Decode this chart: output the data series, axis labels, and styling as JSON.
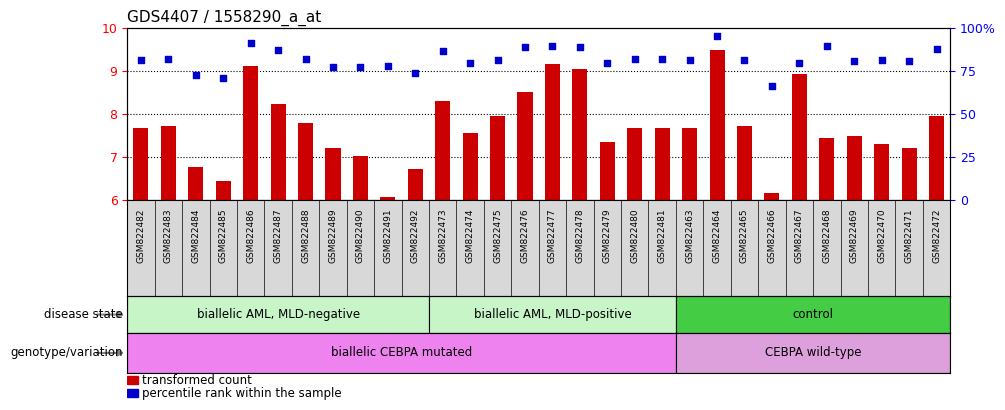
{
  "title": "GDS4407 / 1558290_a_at",
  "samples": [
    "GSM822482",
    "GSM822483",
    "GSM822484",
    "GSM822485",
    "GSM822486",
    "GSM822487",
    "GSM822488",
    "GSM822489",
    "GSM822490",
    "GSM822491",
    "GSM822492",
    "GSM822473",
    "GSM822474",
    "GSM822475",
    "GSM822476",
    "GSM822477",
    "GSM822478",
    "GSM822479",
    "GSM822480",
    "GSM822481",
    "GSM822463",
    "GSM822464",
    "GSM822465",
    "GSM822466",
    "GSM822467",
    "GSM822468",
    "GSM822469",
    "GSM822470",
    "GSM822471",
    "GSM822472"
  ],
  "bar_values": [
    7.67,
    7.72,
    6.78,
    6.45,
    9.1,
    8.22,
    7.78,
    7.2,
    7.02,
    6.07,
    6.72,
    8.3,
    7.55,
    7.95,
    8.5,
    9.15,
    9.05,
    7.35,
    7.68,
    7.68,
    7.68,
    9.48,
    7.72,
    6.18,
    8.92,
    7.45,
    7.5,
    7.3,
    7.22,
    7.95
  ],
  "dot_values": [
    9.25,
    9.28,
    8.9,
    8.82,
    9.65,
    9.48,
    9.28,
    9.08,
    9.08,
    9.12,
    8.95,
    9.45,
    9.18,
    9.25,
    9.55,
    9.58,
    9.55,
    9.18,
    9.28,
    9.28,
    9.25,
    9.8,
    9.25,
    8.65,
    9.18,
    9.58,
    9.22,
    9.25,
    9.22,
    9.5
  ],
  "ylim_left": [
    6,
    10
  ],
  "ylim_right": [
    0,
    100
  ],
  "yticks_left": [
    6,
    7,
    8,
    9,
    10
  ],
  "yticks_right": [
    0,
    25,
    50,
    75,
    100
  ],
  "ytick_labels_right": [
    "0",
    "25",
    "50",
    "75",
    "100%"
  ],
  "bar_color": "#cc0000",
  "dot_color": "#0000cc",
  "dis_colors": [
    "#c8f5c8",
    "#c8f5c8",
    "#44cc44"
  ],
  "dis_labels": [
    "biallelic AML, MLD-negative",
    "biallelic AML, MLD-positive",
    "control"
  ],
  "dis_ranges": [
    [
      0,
      11
    ],
    [
      11,
      20
    ],
    [
      20,
      30
    ]
  ],
  "gen_colors": [
    "#ee82ee",
    "#dda0dd"
  ],
  "gen_labels": [
    "biallelic CEBPA mutated",
    "CEBPA wild-type"
  ],
  "gen_ranges": [
    [
      0,
      20
    ],
    [
      20,
      30
    ]
  ],
  "legend_bar_label": "transformed count",
  "legend_dot_label": "percentile rank within the sample",
  "disease_label": "disease state",
  "genotype_label": "genotype/variation",
  "xtick_bg": "#d8d8d8"
}
